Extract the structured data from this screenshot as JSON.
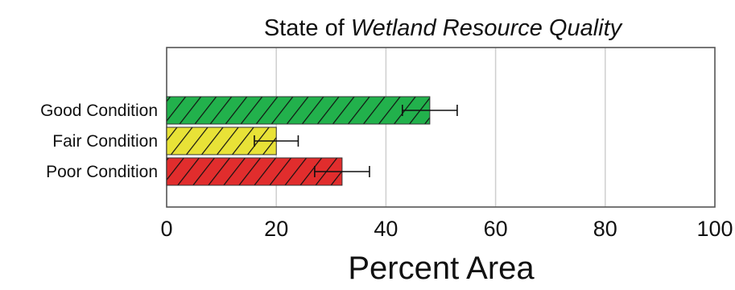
{
  "chart_data": {
    "type": "bar",
    "orientation": "horizontal",
    "title": {
      "prefix": "State of ",
      "emphasis": "Wetland Resource Quality"
    },
    "xlabel": "Percent Area",
    "ylabel": "",
    "xlim": [
      0,
      100
    ],
    "x_ticks": [
      0,
      20,
      40,
      60,
      80,
      100
    ],
    "grid": "vertical",
    "categories": [
      "Good Condition",
      "Fair Condition",
      "Poor Condition"
    ],
    "values": [
      48,
      20,
      32
    ],
    "error_margin": [
      5,
      4,
      5
    ],
    "colors": [
      "#22b14c",
      "#e8e237",
      "#e12d2d"
    ],
    "hatch": "diagonal"
  }
}
